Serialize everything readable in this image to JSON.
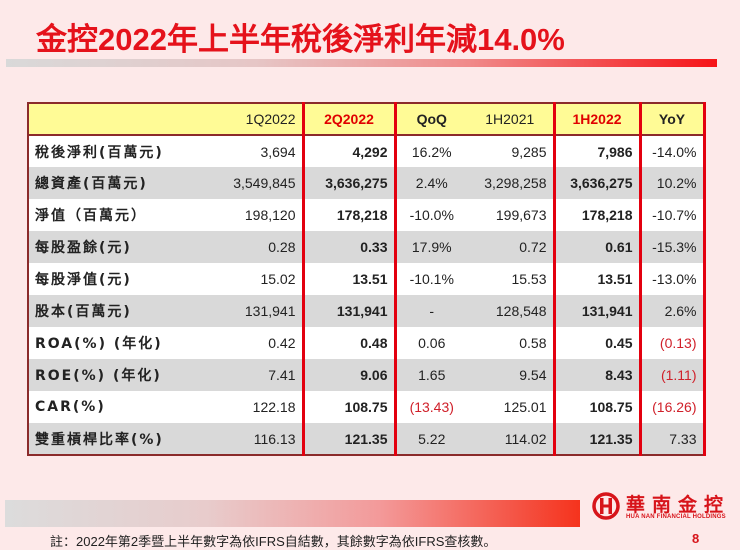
{
  "title": "金控2022年上半年稅後淨利年減14.0%",
  "table": {
    "headers": [
      "",
      "1Q2022",
      "2Q2022",
      "QoQ",
      "1H2021",
      "1H2022",
      "YoY"
    ],
    "rows": [
      {
        "label": "稅後淨利(百萬元)",
        "q1_2022": "3,694",
        "q2_2022": "4,292",
        "qoq": "16.2%",
        "h1_2021": "9,285",
        "h1_2022": "7,986",
        "yoy": "-14.0%"
      },
      {
        "label": "總資產(百萬元)",
        "q1_2022": "3,549,845",
        "q2_2022": "3,636,275",
        "qoq": "2.4%",
        "h1_2021": "3,298,258",
        "h1_2022": "3,636,275",
        "yoy": "10.2%"
      },
      {
        "label": "淨值（百萬元）",
        "q1_2022": "198,120",
        "q2_2022": "178,218",
        "qoq": "-10.0%",
        "h1_2021": "199,673",
        "h1_2022": "178,218",
        "yoy": "-10.7%"
      },
      {
        "label": "每股盈餘(元)",
        "q1_2022": "0.28",
        "q2_2022": "0.33",
        "qoq": "17.9%",
        "h1_2021": "0.72",
        "h1_2022": "0.61",
        "yoy": "-15.3%"
      },
      {
        "label": "每股淨值(元)",
        "q1_2022": "15.02",
        "q2_2022": "13.51",
        "qoq": "-10.1%",
        "h1_2021": "15.53",
        "h1_2022": "13.51",
        "yoy": "-13.0%"
      },
      {
        "label": "股本(百萬元)",
        "q1_2022": "131,941",
        "q2_2022": "131,941",
        "qoq": "-",
        "h1_2021": "128,548",
        "h1_2022": "131,941",
        "yoy": "2.6%"
      },
      {
        "label": "ROA(%) (年化)",
        "q1_2022": "0.42",
        "q2_2022": "0.48",
        "qoq": "0.06",
        "h1_2021": "0.58",
        "h1_2022": "0.45",
        "yoy": "(0.13)"
      },
      {
        "label": "ROE(%) (年化)",
        "q1_2022": "7.41",
        "q2_2022": "9.06",
        "qoq": "1.65",
        "h1_2021": "9.54",
        "h1_2022": "8.43",
        "yoy": "(1.11)"
      },
      {
        "label": "CAR(%)",
        "q1_2022": "122.18",
        "q2_2022": "108.75",
        "qoq": "(13.43)",
        "h1_2021": "125.01",
        "h1_2022": "108.75",
        "yoy": "(16.26)"
      },
      {
        "label": "雙重槓桿比率(%)",
        "q1_2022": "116.13",
        "q2_2022": "121.35",
        "qoq": "5.22",
        "h1_2021": "114.02",
        "h1_2022": "121.35",
        "yoy": "7.33"
      }
    ]
  },
  "footer": {
    "footnote": "註：2022年第2季暨上半年數字為依IFRS自結數，其餘數字為依IFRS查核數。",
    "page_number": "8",
    "logo_cn": "華南金控",
    "logo_en": "HUA NAN FINANCIAL HOLDINGS"
  },
  "colors": {
    "title_red": "#e5121b",
    "header_yellow": "#fffb96",
    "highlight_border_red": "#e3000f",
    "negative_paren_red": "#d0202a",
    "row_gray": "#d9d9d9",
    "background": "#fde9e9"
  }
}
